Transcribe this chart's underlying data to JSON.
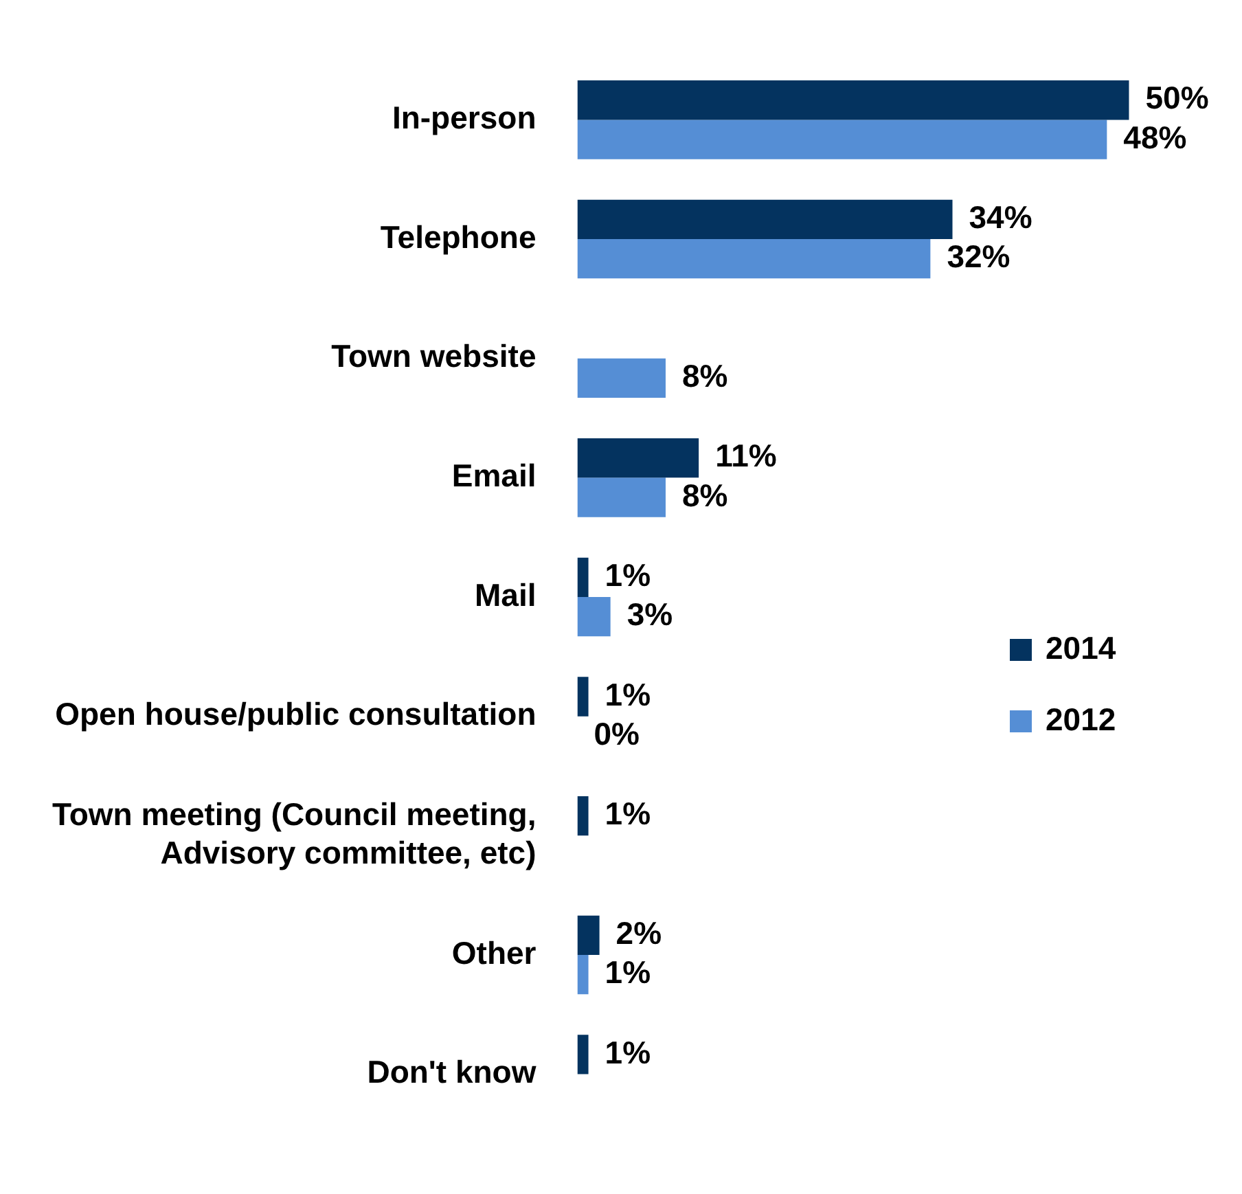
{
  "chart_data": {
    "type": "bar",
    "orientation": "horizontal",
    "categories": [
      "In-person",
      "Telephone",
      "Town website",
      "Email",
      "Mail",
      "Open house/public consultation",
      "Town meeting (Council meeting, Advisory committee, etc)",
      "Other",
      "Don't know"
    ],
    "series": [
      {
        "name": "2014",
        "color": "#04335f",
        "values": [
          50,
          34,
          null,
          11,
          1,
          1,
          1,
          2,
          1
        ],
        "value_labels": [
          "50%",
          "34%",
          null,
          "11%",
          "1%",
          "1%",
          "1%",
          "2%",
          "1%"
        ]
      },
      {
        "name": "2012",
        "color": "#558ed5",
        "values": [
          48,
          32,
          8,
          8,
          3,
          0,
          null,
          1,
          null
        ],
        "value_labels": [
          "48%",
          "32%",
          "8%",
          "8%",
          "3%",
          "0%",
          null,
          "1%",
          null
        ]
      }
    ],
    "legend": "right",
    "grid": false
  }
}
